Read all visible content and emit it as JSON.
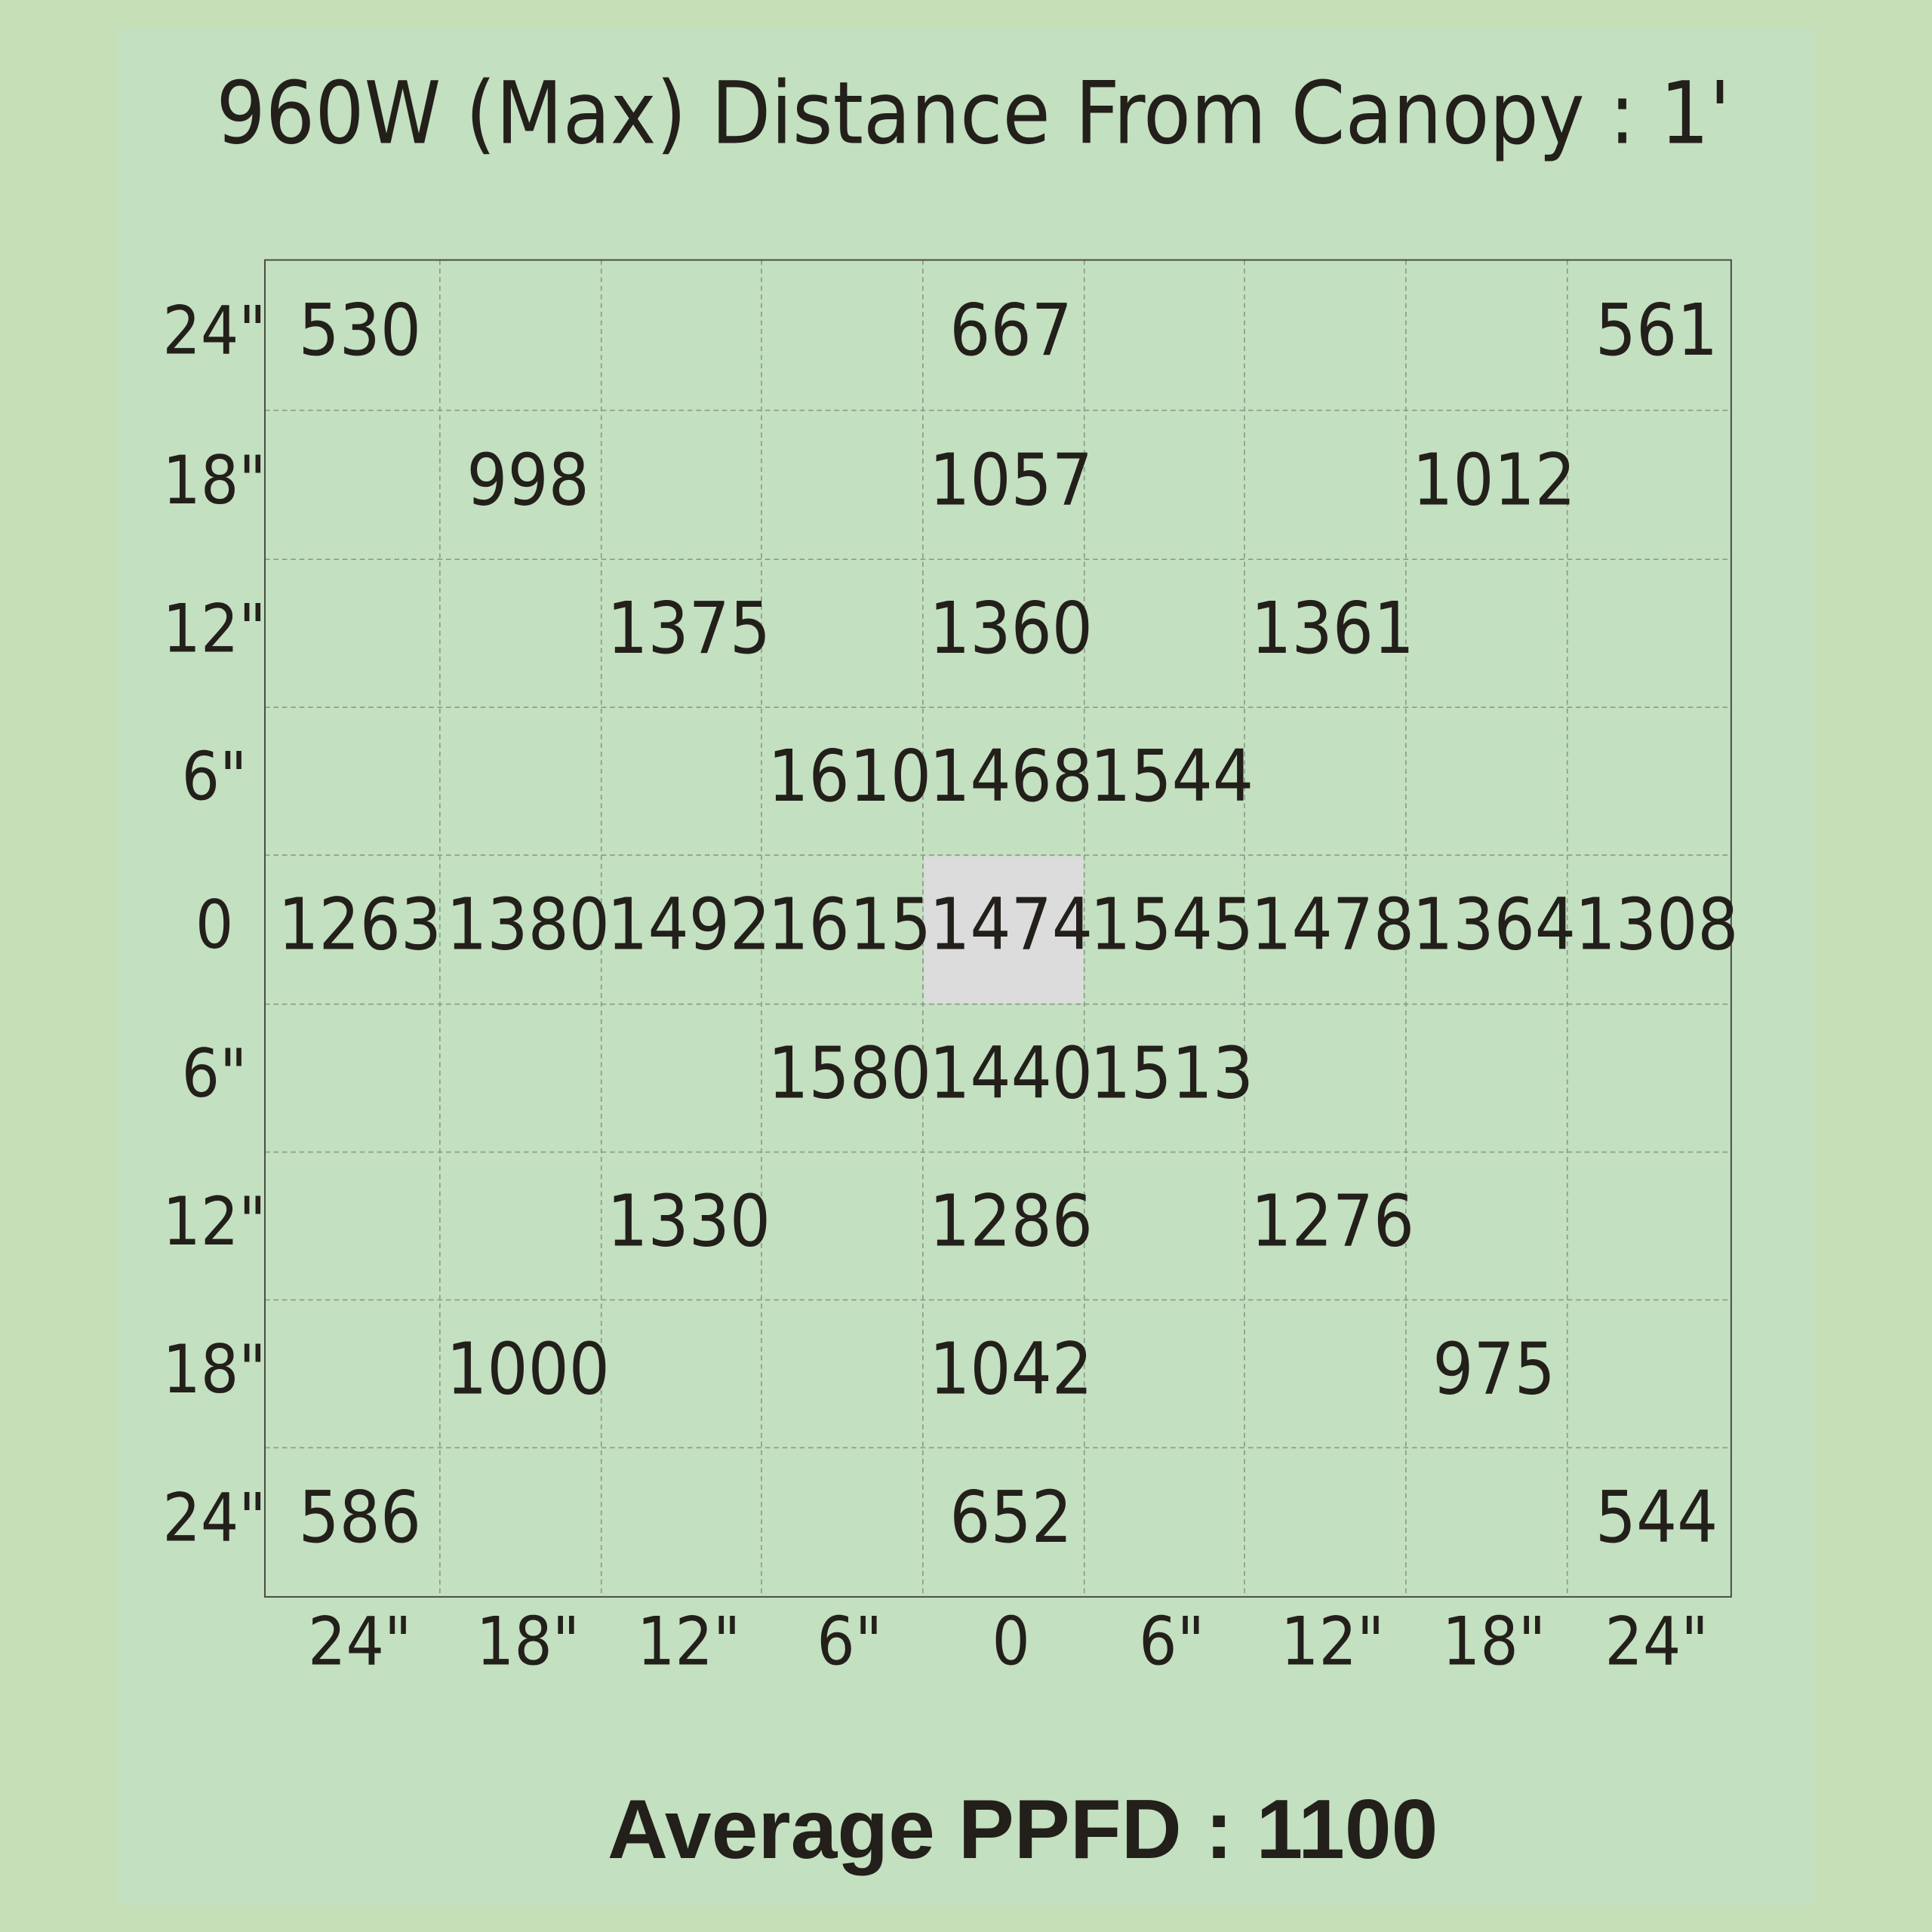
{
  "header": {
    "title": "960W (Max) Distance From Canopy : 1'"
  },
  "table": {
    "row_labels": [
      "24\"",
      "18\"",
      "12\"",
      "6\"",
      "0",
      "6\"",
      "12\"",
      "18\"",
      "24\""
    ],
    "column_labels": [
      "24\"",
      "18\"",
      "12\"",
      "6\"",
      "0",
      "6\"",
      "12\"",
      "18\"",
      "24\""
    ],
    "rows": [
      [
        530,
        null,
        null,
        null,
        667,
        null,
        null,
        null,
        561
      ],
      [
        null,
        998,
        null,
        null,
        1057,
        null,
        null,
        1012,
        null
      ],
      [
        null,
        null,
        1375,
        null,
        1360,
        null,
        1361,
        null,
        null
      ],
      [
        null,
        null,
        null,
        1610,
        1468,
        1544,
        null,
        null,
        null
      ],
      [
        1263,
        1380,
        1492,
        1615,
        1474,
        1545,
        1478,
        1364,
        1308
      ],
      [
        null,
        null,
        null,
        1580,
        1440,
        1513,
        null,
        null,
        null
      ],
      [
        null,
        null,
        1330,
        null,
        1286,
        null,
        1276,
        null,
        null
      ],
      [
        null,
        1000,
        null,
        null,
        1042,
        null,
        null,
        975,
        null
      ],
      [
        586,
        null,
        null,
        null,
        652,
        null,
        null,
        null,
        544
      ]
    ]
  },
  "footer": {
    "text": "Average PPFD : 1100"
  }
}
